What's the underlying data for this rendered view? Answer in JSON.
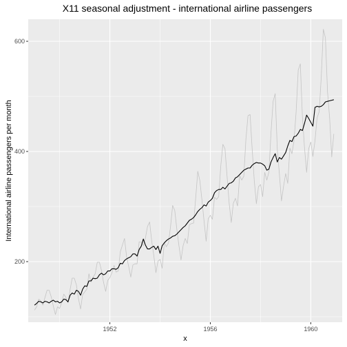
{
  "chart_data": {
    "type": "line",
    "title": "X11 seasonal adjustment - international airline passengers",
    "xlabel": "x",
    "ylabel": "International airline passengers per month",
    "xlim": [
      1948.75,
      1961.25
    ],
    "ylim": [
      90,
      640
    ],
    "x_ticks": [
      1952,
      1956,
      1960
    ],
    "y_ticks": [
      200,
      400,
      600
    ],
    "grid": true,
    "colors": {
      "panel": "#ebebeb",
      "grid_major": "#ffffff",
      "raw_series": "#c4c4c4",
      "adjusted_series": "#000000"
    },
    "x_start": 1949.0,
    "x_step": 0.0833333,
    "series": [
      {
        "role": "raw",
        "values": [
          112,
          118,
          132,
          129,
          121,
          135,
          148,
          148,
          136,
          119,
          104,
          118,
          115,
          126,
          141,
          135,
          125,
          149,
          170,
          170,
          158,
          133,
          114,
          140,
          145,
          150,
          178,
          163,
          172,
          178,
          199,
          199,
          184,
          162,
          146,
          166,
          171,
          180,
          193,
          181,
          183,
          218,
          230,
          242,
          209,
          191,
          172,
          194,
          196,
          196,
          236,
          235,
          229,
          243,
          264,
          272,
          237,
          211,
          180,
          201,
          204,
          188,
          235,
          227,
          234,
          264,
          302,
          293,
          259,
          229,
          203,
          229,
          242,
          233,
          267,
          269,
          270,
          315,
          364,
          347,
          312,
          274,
          237,
          278,
          284,
          277,
          317,
          313,
          318,
          374,
          413,
          405,
          355,
          306,
          271,
          306,
          315,
          301,
          356,
          348,
          355,
          422,
          465,
          467,
          404,
          347,
          305,
          336,
          340,
          318,
          362,
          348,
          363,
          435,
          491,
          505,
          404,
          359,
          310,
          337,
          360,
          342,
          406,
          396,
          420,
          472,
          548,
          559,
          463,
          407,
          362,
          405,
          417,
          391,
          419,
          461,
          472,
          535,
          622,
          606,
          508,
          461,
          390,
          432
        ]
      },
      {
        "role": "adjusted",
        "values": [
          121,
          124,
          128,
          127,
          125,
          128,
          127,
          125,
          128,
          130,
          127,
          128,
          125,
          127,
          132,
          131,
          127,
          139,
          143,
          141,
          148,
          146,
          139,
          150,
          156,
          155,
          165,
          165,
          170,
          169,
          170,
          176,
          179,
          176,
          178,
          183,
          183,
          187,
          187,
          186,
          189,
          197,
          196,
          202,
          205,
          207,
          209,
          214,
          214,
          210,
          222,
          228,
          241,
          230,
          223,
          223,
          226,
          228,
          222,
          228,
          215,
          229,
          234,
          238,
          241,
          243,
          246,
          247,
          250,
          254,
          258,
          262,
          265,
          270,
          275,
          277,
          280,
          285,
          291,
          295,
          298,
          303,
          301,
          308,
          311,
          315,
          325,
          329,
          331,
          331,
          335,
          332,
          337,
          342,
          343,
          346,
          352,
          354,
          358,
          362,
          366,
          368,
          370,
          370,
          375,
          378,
          380,
          379,
          379,
          377,
          374,
          366,
          368,
          381,
          389,
          396,
          381,
          389,
          386,
          392,
          398,
          410,
          420,
          418,
          427,
          428,
          433,
          440,
          438,
          451,
          466,
          460,
          453,
          446,
          480,
          482,
          481,
          482,
          485,
          490,
          491,
          492,
          493,
          494
        ]
      }
    ]
  }
}
